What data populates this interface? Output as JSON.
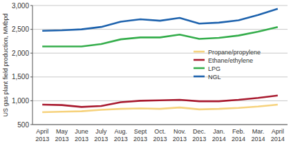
{
  "chart_data": {
    "type": "line",
    "y_label": "US gas plant field production, MMbpd",
    "categories": [
      "April 2013",
      "May 2013",
      "June 2013",
      "July 2013",
      "Aug. 2013",
      "Sept 2013",
      "Oct. 2013",
      "Nov. 2013",
      "Dec. 2013",
      "Jan. 2014",
      "Feb. 2014",
      "Mar. 2014",
      "April 2014"
    ],
    "series": [
      {
        "name": "Propane/propylene",
        "color": "#f6d27c",
        "values": [
          760,
          770,
          780,
          810,
          830,
          840,
          830,
          860,
          820,
          830,
          850,
          880,
          920
        ]
      },
      {
        "name": "Ethane/ethylene",
        "color": "#a8192e",
        "values": [
          920,
          910,
          870,
          890,
          970,
          1000,
          1010,
          1020,
          990,
          990,
          1020,
          1060,
          1110
        ]
      },
      {
        "name": "LPG",
        "color": "#34ad4b",
        "values": [
          2140,
          2140,
          2140,
          2190,
          2290,
          2330,
          2330,
          2390,
          2300,
          2320,
          2370,
          2450,
          2550
        ]
      },
      {
        "name": "NGL",
        "color": "#1d62ad",
        "values": [
          2470,
          2480,
          2500,
          2550,
          2660,
          2710,
          2680,
          2740,
          2620,
          2640,
          2690,
          2800,
          2930
        ]
      }
    ],
    "ylim": [
      500,
      3000
    ],
    "yticks": [
      500,
      {
        "value": 1000,
        "label": "1,000"
      },
      {
        "value": 1500,
        "label": "1,500"
      },
      {
        "value": 2000,
        "label": "2,000"
      },
      {
        "value": 2500,
        "label": "2,500"
      },
      {
        "value": 3000,
        "label": "3,000"
      }
    ],
    "grid": true,
    "legend": "right"
  }
}
